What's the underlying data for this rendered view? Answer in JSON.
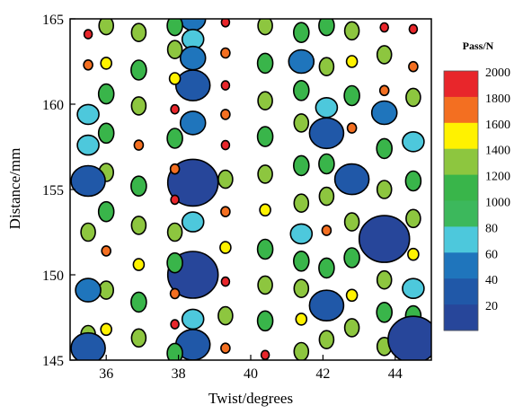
{
  "chart_data": {
    "type": "scatter",
    "xlabel": "Twist/degrees",
    "ylabel": "Distance/mm",
    "xlim": [
      35,
      45
    ],
    "ylim": [
      145,
      165
    ],
    "x_ticks": [
      36,
      38,
      40,
      42,
      44
    ],
    "y_ticks": [
      145,
      150,
      155,
      160,
      165
    ],
    "grid": false,
    "colorbar": {
      "title": "Pass/N",
      "placement": "right",
      "bands": [
        {
          "label": "2000",
          "color": "#e8262b"
        },
        {
          "label": "1800",
          "color": "#f36f21"
        },
        {
          "label": "1600",
          "color": "#fff200"
        },
        {
          "label": "1400",
          "color": "#8dc63f"
        },
        {
          "label": "1200",
          "color": "#39b54a"
        },
        {
          "label": "1000",
          "color": "#3cb85c"
        },
        {
          "label": "80",
          "color": "#4dc8dc"
        },
        {
          "label": "60",
          "color": "#1f75bc"
        },
        {
          "label": "40",
          "color": "#2058a8"
        },
        {
          "label": "20",
          "color": "#27469a"
        }
      ]
    },
    "point_columns": [
      {
        "x": 38.4,
        "points": [
          [
            165.0,
            60
          ],
          [
            163.8,
            80
          ],
          [
            162.7,
            60
          ],
          [
            161.1,
            40
          ],
          [
            158.9,
            60
          ],
          [
            155.4,
            20
          ],
          [
            153.1,
            80
          ],
          [
            150.0,
            20
          ],
          [
            147.4,
            80
          ],
          [
            145.9,
            40
          ]
        ]
      },
      {
        "x": 37.9,
        "points": [
          [
            164.6,
            1200
          ],
          [
            163.2,
            1400
          ],
          [
            161.5,
            1600
          ],
          [
            159.7,
            2000
          ],
          [
            158.0,
            1200
          ],
          [
            156.2,
            1800
          ],
          [
            154.4,
            2000
          ],
          [
            152.5,
            1400
          ],
          [
            150.7,
            1200
          ],
          [
            148.9,
            1800
          ],
          [
            147.1,
            2000
          ],
          [
            145.4,
            1200
          ]
        ]
      },
      {
        "x": 36.9,
        "points": [
          [
            164.2,
            1400
          ],
          [
            162.0,
            1200
          ],
          [
            159.9,
            1400
          ],
          [
            157.6,
            1800
          ],
          [
            155.2,
            1200
          ],
          [
            152.9,
            1400
          ],
          [
            150.6,
            1600
          ],
          [
            148.4,
            1200
          ],
          [
            146.3,
            1400
          ]
        ]
      },
      {
        "x": 36.0,
        "points": [
          [
            164.6,
            1400
          ],
          [
            162.4,
            1600
          ],
          [
            160.6,
            1200
          ],
          [
            158.3,
            1200
          ],
          [
            156.0,
            1400
          ],
          [
            153.7,
            1200
          ],
          [
            151.4,
            1800
          ],
          [
            149.1,
            1400
          ],
          [
            146.8,
            1600
          ]
        ]
      },
      {
        "x": 35.5,
        "points": [
          [
            164.1,
            2000
          ],
          [
            162.3,
            1800
          ],
          [
            159.4,
            80
          ],
          [
            157.6,
            80
          ],
          [
            155.5,
            40
          ],
          [
            152.5,
            1400
          ],
          [
            149.1,
            60
          ],
          [
            146.5,
            1400
          ],
          [
            145.7,
            40
          ]
        ]
      },
      {
        "x": 39.3,
        "points": [
          [
            164.8,
            2000
          ],
          [
            163.0,
            1800
          ],
          [
            161.1,
            2000
          ],
          [
            159.4,
            1800
          ],
          [
            157.6,
            2000
          ],
          [
            155.6,
            1400
          ],
          [
            153.7,
            1800
          ],
          [
            151.6,
            1600
          ],
          [
            149.6,
            2000
          ],
          [
            147.6,
            1400
          ],
          [
            145.7,
            1800
          ]
        ]
      },
      {
        "x": 40.4,
        "points": [
          [
            164.6,
            1400
          ],
          [
            162.4,
            1200
          ],
          [
            160.2,
            1400
          ],
          [
            158.1,
            1200
          ],
          [
            155.9,
            1400
          ],
          [
            153.8,
            1600
          ],
          [
            151.5,
            1200
          ],
          [
            149.4,
            1400
          ],
          [
            147.3,
            1200
          ],
          [
            145.3,
            2000
          ]
        ]
      },
      {
        "x": 41.4,
        "points": [
          [
            164.2,
            1200
          ],
          [
            162.5,
            60
          ],
          [
            160.8,
            1200
          ],
          [
            158.9,
            1400
          ],
          [
            156.4,
            1200
          ],
          [
            154.2,
            1400
          ],
          [
            152.4,
            80
          ],
          [
            150.8,
            1200
          ],
          [
            149.2,
            1400
          ],
          [
            147.4,
            1600
          ],
          [
            145.5,
            1400
          ]
        ]
      },
      {
        "x": 42.1,
        "points": [
          [
            164.6,
            1200
          ],
          [
            162.2,
            1400
          ],
          [
            159.8,
            80
          ],
          [
            158.3,
            40
          ],
          [
            156.5,
            1200
          ],
          [
            154.6,
            1400
          ],
          [
            152.6,
            1800
          ],
          [
            150.4,
            1200
          ],
          [
            148.2,
            40
          ],
          [
            146.2,
            1400
          ]
        ]
      },
      {
        "x": 42.8,
        "points": [
          [
            164.3,
            1400
          ],
          [
            162.5,
            1600
          ],
          [
            160.5,
            1200
          ],
          [
            158.6,
            1800
          ],
          [
            155.6,
            40
          ],
          [
            153.1,
            1400
          ],
          [
            151.0,
            1200
          ],
          [
            148.8,
            1600
          ],
          [
            146.9,
            1400
          ]
        ]
      },
      {
        "x": 43.7,
        "points": [
          [
            164.5,
            2000
          ],
          [
            162.9,
            1400
          ],
          [
            160.8,
            1800
          ],
          [
            159.5,
            60
          ],
          [
            157.4,
            1200
          ],
          [
            155.0,
            1400
          ],
          [
            152.1,
            20
          ],
          [
            149.7,
            1400
          ],
          [
            147.8,
            1200
          ],
          [
            145.8,
            1400
          ]
        ]
      },
      {
        "x": 44.5,
        "points": [
          [
            164.4,
            2000
          ],
          [
            162.2,
            1800
          ],
          [
            160.4,
            1400
          ],
          [
            157.8,
            80
          ],
          [
            155.5,
            1200
          ],
          [
            153.3,
            1400
          ],
          [
            151.2,
            1600
          ],
          [
            149.2,
            80
          ],
          [
            147.6,
            1200
          ],
          [
            146.2,
            20
          ]
        ]
      }
    ]
  }
}
